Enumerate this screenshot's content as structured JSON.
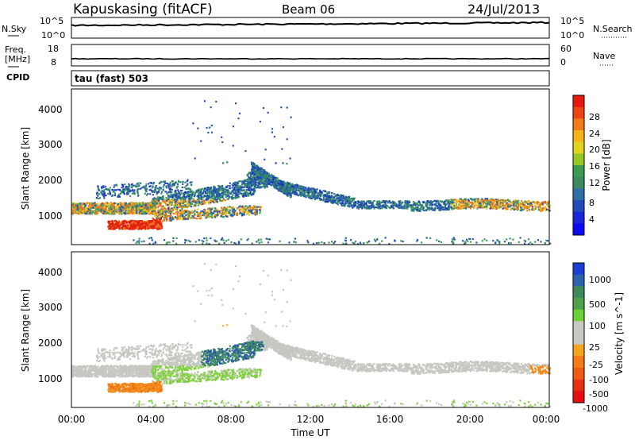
{
  "header": {
    "station": "Kapuskasing (fitACF)",
    "beam": "Beam 06",
    "date": "24/Jul/2013"
  },
  "top_panels": {
    "nsky_label": "N.Sky",
    "nsky_ticks": [
      "10^5",
      "10^0"
    ],
    "nsearch_label": "N.Search",
    "nsearch_ticks": [
      "10^5",
      "10^0"
    ],
    "freq_label_1": "Freq.",
    "freq_label_2": "[MHz]",
    "freq_ticks": [
      "18",
      "8"
    ],
    "nave_label": "Nave",
    "nave_ticks": [
      "60",
      "0"
    ],
    "cpid_label": "CPID",
    "cpid_value": "tau (fast) 503"
  },
  "chart_data": [
    {
      "type": "heatmap",
      "name": "power",
      "ylabel": "Slant Range [km]",
      "xlabel": "Time UT",
      "xlim_hours": [
        0,
        24
      ],
      "ylim": [
        200,
        4600
      ],
      "yticks": [
        "1000",
        "2000",
        "3000",
        "4000"
      ],
      "xticks": [
        "00:00",
        "04:00",
        "08:00",
        "12:00",
        "16:00",
        "20:00",
        "00:00"
      ],
      "colorbar": {
        "label": "Power [dB]",
        "ticks": [
          "28",
          "24",
          "20",
          "16",
          "12",
          "8",
          "4"
        ],
        "colors": [
          "#e8180f",
          "#ee4412",
          "#f27a19",
          "#f6b318",
          "#e2d520",
          "#96c824",
          "#3c9a52",
          "#3a8a5e",
          "#2f6fa8",
          "#244bbb",
          "#1726d9",
          "#0b0af2"
        ]
      }
    },
    {
      "type": "heatmap",
      "name": "velocity",
      "ylabel": "Slant Range [km]",
      "xlabel": "Time UT",
      "xlim_hours": [
        0,
        24
      ],
      "ylim": [
        200,
        4600
      ],
      "yticks": [
        "1000",
        "2000",
        "3000",
        "4000"
      ],
      "xticks": [
        "00:00",
        "04:00",
        "08:00",
        "12:00",
        "16:00",
        "20:00",
        "00:00"
      ],
      "colorbar": {
        "label": "Velocity [m s^-1]",
        "ticks": [
          "1000",
          "500",
          "100",
          "25",
          "-25",
          "-100",
          "-500",
          "-1000"
        ],
        "colors": [
          "#1b3fd4",
          "#2c62b0",
          "#3d8a5a",
          "#4fa24a",
          "#6dd136",
          "#c7c8c2",
          "#c7c8c2",
          "#f6a41c",
          "#f47b16",
          "#ef5b12",
          "#e9310f",
          "#e60f0f"
        ]
      }
    }
  ]
}
